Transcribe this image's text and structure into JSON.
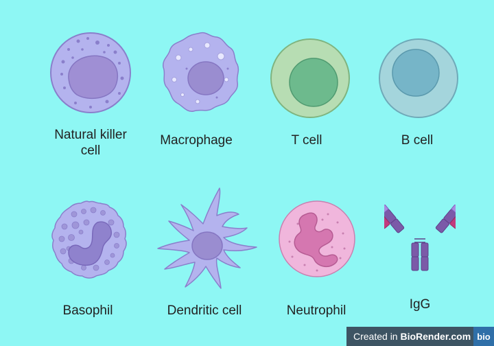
{
  "cells": [
    {
      "id": "nk",
      "label_line1": "Natural killer",
      "label_line2": "cell"
    },
    {
      "id": "macrophage",
      "label": "Macrophage"
    },
    {
      "id": "tcell",
      "label": "T cell"
    },
    {
      "id": "bcell",
      "label": "B cell"
    },
    {
      "id": "basophil",
      "label": "Basophil"
    },
    {
      "id": "dendritic",
      "label": "Dendritic cell"
    },
    {
      "id": "neutrophil",
      "label": "Neutrophil"
    },
    {
      "id": "igg",
      "label": "IgG"
    }
  ],
  "credit": {
    "prefix": "Created in ",
    "brand": "BioRender.com",
    "logo": "bio"
  },
  "colors": {
    "background": "#8ef7f4",
    "lavender_cell": "#b4b3ee",
    "lavender_nucleus": "#9a8dd0",
    "tcell_body": "#b7ddb3",
    "tcell_nucleus": "#6dba8d",
    "bcell_body": "#a4d5dc",
    "bcell_nucleus": "#76b5c8",
    "neutrophil_body": "#f0b6dc",
    "neutrophil_nucleus": "#d577b0"
  }
}
